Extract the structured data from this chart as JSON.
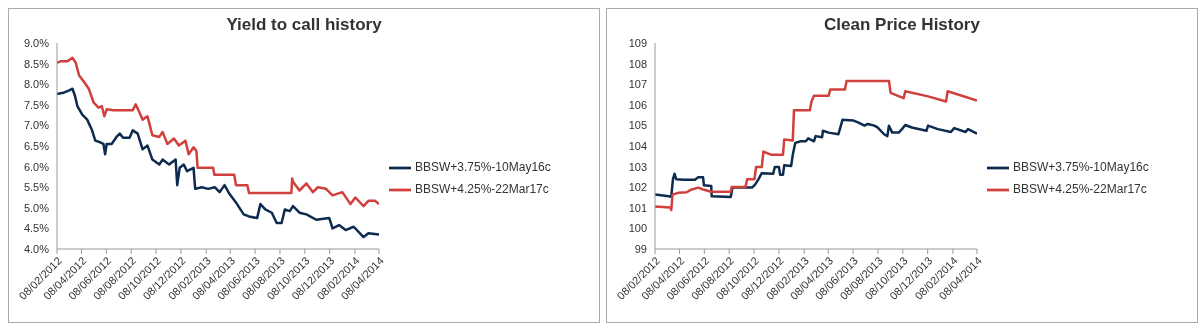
{
  "chart_data": [
    {
      "type": "line",
      "title": "Yield to call history",
      "legend": "right",
      "xlim": [
        "2012-02-08",
        "2014-04-08"
      ],
      "xticks": [
        {
          "value": "2012-02-08",
          "label": "08/02/2012"
        },
        {
          "value": "2012-04-08",
          "label": "08/04/2012"
        },
        {
          "value": "2012-06-08",
          "label": "08/06/2012"
        },
        {
          "value": "2012-08-08",
          "label": "08/08/2012"
        },
        {
          "value": "2012-10-08",
          "label": "08/10/2012"
        },
        {
          "value": "2012-12-08",
          "label": "08/12/2012"
        },
        {
          "value": "2013-02-08",
          "label": "08/02/2013"
        },
        {
          "value": "2013-04-08",
          "label": "08/04/2013"
        },
        {
          "value": "2013-06-08",
          "label": "08/06/2013"
        },
        {
          "value": "2013-08-08",
          "label": "08/08/2013"
        },
        {
          "value": "2013-10-08",
          "label": "08/10/2013"
        },
        {
          "value": "2013-12-08",
          "label": "08/12/2013"
        },
        {
          "value": "2014-02-08",
          "label": "08/02/2014"
        },
        {
          "value": "2014-04-08",
          "label": "08/04/2014"
        }
      ],
      "ylim": [
        4,
        9
      ],
      "yticks": [
        {
          "value": 4,
          "label": "4.0%"
        },
        {
          "value": 4.5,
          "label": "4.5%"
        },
        {
          "value": 5,
          "label": "5.0%"
        },
        {
          "value": 5.5,
          "label": "5.5%"
        },
        {
          "value": 6,
          "label": "6.0%"
        },
        {
          "value": 6.5,
          "label": "6.5%"
        },
        {
          "value": 7,
          "label": "7.0%"
        },
        {
          "value": 7.5,
          "label": "7.5%"
        },
        {
          "value": 8,
          "label": "8.0%"
        },
        {
          "value": 8.5,
          "label": "8.5%"
        },
        {
          "value": 9,
          "label": "9.0%"
        }
      ],
      "series": [
        {
          "name": "BBSW+3.75%-10May16c",
          "color": "#0d2b4e",
          "x": [
            "2012-02-08",
            "2012-02-26",
            "2012-03-09",
            "2012-03-17",
            "2012-03-23",
            "2012-03-29",
            "2012-04-10",
            "2012-04-22",
            "2012-05-04",
            "2012-05-12",
            "2012-05-24",
            "2012-06-01",
            "2012-06-05",
            "2012-06-09",
            "2012-06-21",
            "2012-07-03",
            "2012-07-11",
            "2012-07-19",
            "2012-08-04",
            "2012-08-12",
            "2012-08-24",
            "2012-09-05",
            "2012-09-17",
            "2012-09-29",
            "2012-10-16",
            "2012-10-24",
            "2012-11-09",
            "2012-11-25",
            "2012-11-29",
            "2012-12-05",
            "2012-12-15",
            "2012-12-23",
            "2013-01-08",
            "2013-01-12",
            "2013-01-28",
            "2013-02-13",
            "2013-03-01",
            "2013-03-13",
            "2013-03-25",
            "2013-04-06",
            "2013-04-22",
            "2013-05-11",
            "2013-05-24",
            "2013-06-13",
            "2013-06-21",
            "2013-07-03",
            "2013-07-19",
            "2013-07-31",
            "2013-08-12",
            "2013-08-20",
            "2013-09-01",
            "2013-09-09",
            "2013-09-25",
            "2013-10-12",
            "2013-11-05",
            "2013-12-07",
            "2013-12-15",
            "2013-12-31",
            "2014-01-16",
            "2014-02-05",
            "2014-03-01",
            "2014-03-13",
            "2014-04-08"
          ],
          "values": [
            7.76,
            7.8,
            7.85,
            7.89,
            7.72,
            7.47,
            7.26,
            7.14,
            6.88,
            6.63,
            6.59,
            6.55,
            6.3,
            6.55,
            6.55,
            6.72,
            6.8,
            6.7,
            6.7,
            6.88,
            6.8,
            6.42,
            6.51,
            6.17,
            6.05,
            6.17,
            6.05,
            6.17,
            5.55,
            5.97,
            6.05,
            5.89,
            5.97,
            5.46,
            5.5,
            5.46,
            5.5,
            5.38,
            5.55,
            5.34,
            5.13,
            4.84,
            4.79,
            4.75,
            5.09,
            4.96,
            4.88,
            4.63,
            4.63,
            4.96,
            4.92,
            5.04,
            4.88,
            4.84,
            4.71,
            4.75,
            4.5,
            4.58,
            4.46,
            4.54,
            4.29,
            4.38,
            4.35
          ]
        },
        {
          "name": "BBSW+4.25%-22Mar17c",
          "color": "#d0413d",
          "x": [
            "2012-02-08",
            "2012-02-18",
            "2012-03-05",
            "2012-03-17",
            "2012-03-25",
            "2012-04-02",
            "2012-04-14",
            "2012-04-26",
            "2012-05-08",
            "2012-05-20",
            "2012-05-28",
            "2012-06-03",
            "2012-06-09",
            "2012-06-25",
            "2012-08-12",
            "2012-08-19",
            "2012-08-29",
            "2012-09-05",
            "2012-09-17",
            "2012-09-29",
            "2012-10-16",
            "2012-10-24",
            "2012-11-05",
            "2012-11-21",
            "2012-12-03",
            "2012-12-19",
            "2012-12-27",
            "2013-01-08",
            "2013-01-15",
            "2013-01-18",
            "2013-02-25",
            "2013-02-28",
            "2013-04-18",
            "2013-04-22",
            "2013-05-20",
            "2013-05-24",
            "2013-09-05",
            "2013-09-07",
            "2013-09-09",
            "2013-09-25",
            "2013-10-12",
            "2013-10-28",
            "2013-11-09",
            "2013-11-29",
            "2013-12-15",
            "2014-01-08",
            "2014-01-28",
            "2014-02-09",
            "2014-03-01",
            "2014-03-13",
            "2014-03-29",
            "2014-04-08"
          ],
          "values": [
            8.52,
            8.56,
            8.56,
            8.64,
            8.52,
            8.22,
            8.06,
            7.89,
            7.55,
            7.43,
            7.47,
            7.22,
            7.39,
            7.37,
            7.37,
            7.51,
            7.3,
            7.14,
            7.22,
            6.76,
            6.72,
            6.84,
            6.55,
            6.68,
            6.51,
            6.63,
            6.3,
            6.47,
            6.38,
            5.97,
            5.97,
            5.8,
            5.8,
            5.55,
            5.55,
            5.36,
            5.36,
            5.71,
            5.63,
            5.42,
            5.59,
            5.38,
            5.5,
            5.46,
            5.3,
            5.38,
            5.09,
            5.25,
            5.04,
            5.17,
            5.17,
            5.09
          ]
        }
      ]
    },
    {
      "type": "line",
      "title": "Clean Price History",
      "legend": "right",
      "xlim": [
        "2012-02-08",
        "2014-04-08"
      ],
      "xticks": [
        {
          "value": "2012-02-08",
          "label": "08/02/2012"
        },
        {
          "value": "2012-04-08",
          "label": "08/04/2012"
        },
        {
          "value": "2012-06-08",
          "label": "08/06/2012"
        },
        {
          "value": "2012-08-08",
          "label": "08/08/2012"
        },
        {
          "value": "2012-10-08",
          "label": "08/10/2012"
        },
        {
          "value": "2012-12-08",
          "label": "08/12/2012"
        },
        {
          "value": "2013-02-08",
          "label": "08/02/2013"
        },
        {
          "value": "2013-04-08",
          "label": "08/04/2013"
        },
        {
          "value": "2013-06-08",
          "label": "08/06/2013"
        },
        {
          "value": "2013-08-08",
          "label": "08/08/2013"
        },
        {
          "value": "2013-10-08",
          "label": "08/10/2013"
        },
        {
          "value": "2013-12-08",
          "label": "08/12/2013"
        },
        {
          "value": "2014-02-08",
          "label": "08/02/2014"
        },
        {
          "value": "2014-04-08",
          "label": "08/04/2014"
        }
      ],
      "ylim": [
        99,
        109
      ],
      "yticks": [
        99,
        100,
        101,
        102,
        103,
        104,
        105,
        106,
        107,
        108,
        109
      ],
      "series": [
        {
          "name": "BBSW+3.75%-10May16c",
          "color": "#0d2b4e",
          "x": [
            "2012-02-08",
            "2012-03-13",
            "2012-03-19",
            "2012-03-23",
            "2012-03-27",
            "2012-03-31",
            "2012-04-18",
            "2012-05-16",
            "2012-05-24",
            "2012-06-05",
            "2012-06-07",
            "2012-06-25",
            "2012-06-26",
            "2012-08-12",
            "2012-08-16",
            "2012-10-03",
            "2012-10-11",
            "2012-10-19",
            "2012-10-27",
            "2012-11-24",
            "2012-11-28",
            "2012-12-08",
            "2012-12-11",
            "2012-12-18",
            "2012-12-21",
            "2013-01-07",
            "2013-01-11",
            "2013-01-17",
            "2013-01-31",
            "2013-02-12",
            "2013-02-18",
            "2013-03-04",
            "2013-03-08",
            "2013-03-24",
            "2013-03-26",
            "2013-04-09",
            "2013-05-03",
            "2013-05-09",
            "2013-05-13",
            "2013-06-08",
            "2013-06-20",
            "2013-07-06",
            "2013-07-14",
            "2013-07-30",
            "2013-08-07",
            "2013-08-23",
            "2013-08-31",
            "2013-09-04",
            "2013-09-12",
            "2013-09-28",
            "2013-10-06",
            "2013-10-14",
            "2013-10-30",
            "2013-12-05",
            "2013-12-09",
            "2014-01-02",
            "2014-02-03",
            "2014-02-11",
            "2014-03-11",
            "2014-03-17",
            "2014-04-08"
          ],
          "values": [
            101.64,
            101.56,
            101.53,
            102.39,
            102.65,
            102.39,
            102.36,
            102.36,
            102.48,
            102.48,
            102.09,
            102.06,
            101.56,
            101.53,
            101.98,
            101.98,
            102.14,
            102.39,
            102.68,
            102.65,
            102.98,
            102.98,
            102.6,
            102.6,
            103.06,
            103.03,
            103.57,
            104.15,
            104.23,
            104.23,
            104.37,
            104.23,
            104.48,
            104.43,
            104.74,
            104.65,
            104.57,
            104.99,
            105.27,
            105.24,
            105.15,
            104.99,
            105.07,
            104.99,
            104.9,
            104.57,
            104.48,
            104.98,
            104.65,
            104.65,
            104.82,
            105.02,
            104.9,
            104.74,
            104.99,
            104.82,
            104.68,
            104.87,
            104.68,
            104.82,
            104.6
          ]
        },
        {
          "name": "BBSW+4.25%-22Mar17c",
          "color": "#d0413d",
          "x": [
            "2012-02-08",
            "2012-03-17",
            "2012-03-19",
            "2012-03-22",
            "2012-04-06",
            "2012-04-26",
            "2012-05-08",
            "2012-05-24",
            "2012-06-05",
            "2012-06-25",
            "2012-08-12",
            "2012-08-14",
            "2012-09-17",
            "2012-09-21",
            "2012-10-09",
            "2012-10-13",
            "2012-10-27",
            "2012-10-31",
            "2012-11-20",
            "2012-12-18",
            "2012-12-21",
            "2013-01-11",
            "2013-01-14",
            "2013-02-22",
            "2013-02-26",
            "2013-03-04",
            "2013-04-09",
            "2013-04-13",
            "2013-05-19",
            "2013-05-23",
            "2013-09-04",
            "2013-09-08",
            "2013-10-10",
            "2013-10-14",
            "2013-12-09",
            "2014-01-22",
            "2014-01-26",
            "2014-04-08"
          ],
          "values": [
            101.06,
            101.02,
            100.89,
            101.64,
            101.73,
            101.76,
            101.89,
            101.98,
            101.89,
            101.78,
            101.78,
            102.01,
            102.01,
            102.39,
            102.39,
            102.98,
            102.98,
            103.73,
            103.57,
            103.57,
            104.32,
            104.27,
            105.74,
            105.74,
            106.16,
            106.44,
            106.44,
            106.74,
            106.74,
            107.16,
            107.16,
            106.58,
            106.32,
            106.66,
            106.41,
            106.16,
            106.66,
            106.21
          ]
        }
      ]
    }
  ]
}
